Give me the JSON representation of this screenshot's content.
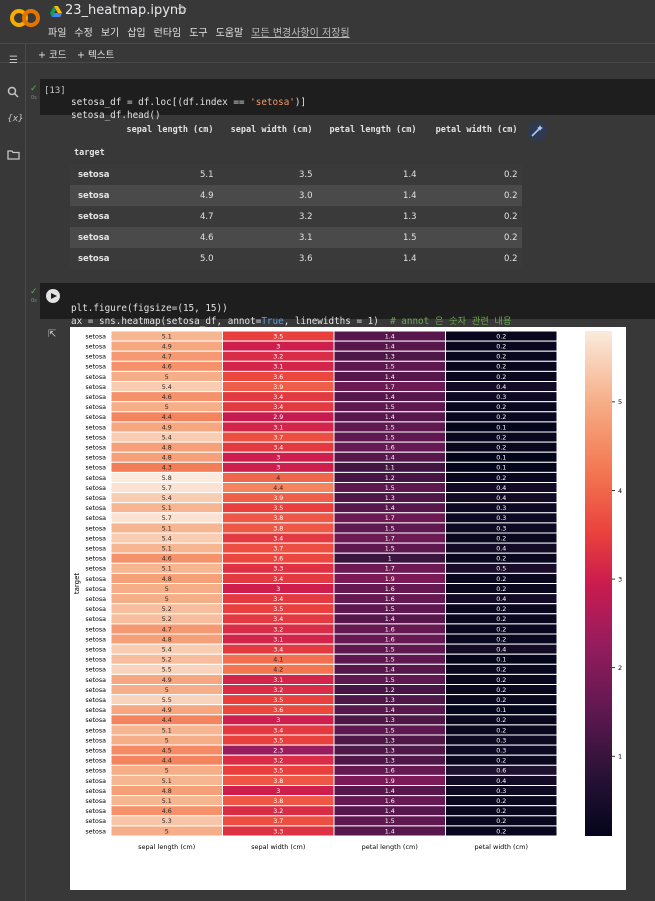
{
  "app": {
    "title": "23_heatmap.ipynb",
    "menu": [
      "파일",
      "수정",
      "보기",
      "삽입",
      "런타임",
      "도구",
      "도움말"
    ],
    "saved_status": "모든 변경사항이 저장됨",
    "toolbar": {
      "add_code": "+ 코드",
      "add_text": "+ 텍스트"
    },
    "icons": {
      "logo": "colab-logo",
      "drive": "drive-icon",
      "star": "star-icon",
      "toc": "toc-icon",
      "search": "search-icon",
      "variables": "variables-icon",
      "files": "folder-icon"
    }
  },
  "cell1": {
    "exec_count": "[13]",
    "line1_pre": "setosa_df = df.loc[(df.index == ",
    "line1_str": "'setosa'",
    "line1_post": ")]",
    "line2": "setosa_df.head()",
    "table": {
      "columns": [
        "sepal length (cm)",
        "sepal width (cm)",
        "petal length (cm)",
        "petal width (cm)"
      ],
      "index_name": "target",
      "rows": [
        {
          "index": "setosa",
          "values": [
            "5.1",
            "3.5",
            "1.4",
            "0.2"
          ]
        },
        {
          "index": "setosa",
          "values": [
            "4.9",
            "3.0",
            "1.4",
            "0.2"
          ]
        },
        {
          "index": "setosa",
          "values": [
            "4.7",
            "3.2",
            "1.3",
            "0.2"
          ]
        },
        {
          "index": "setosa",
          "values": [
            "4.6",
            "3.1",
            "1.5",
            "0.2"
          ]
        },
        {
          "index": "setosa",
          "values": [
            "5.0",
            "3.6",
            "1.4",
            "0.2"
          ]
        }
      ]
    }
  },
  "cell2": {
    "line1_pre": "plt.figure(figsize=(15, 15))",
    "line2_pre": "ax = sns.heatmap(setosa_df, annot=",
    "line2_kw": "True",
    "line2_post": ", linewidths = 1)  ",
    "line2_comment": "# annot 은 숫자 관련 내용"
  },
  "chart_data": {
    "type": "heatmap",
    "ylabel": "target",
    "row_label": "setosa",
    "columns": [
      "sepal length (cm)",
      "sepal width (cm)",
      "petal length (cm)",
      "petal width (cm)"
    ],
    "sepal_length": [
      "5.1",
      "4.9",
      "4.7",
      "4.6",
      "5",
      "5.4",
      "4.6",
      "5",
      "4.4",
      "4.9",
      "5.4",
      "4.8",
      "4.8",
      "4.3",
      "5.8",
      "5.7",
      "5.4",
      "5.1",
      "5.7",
      "5.1",
      "5.4",
      "5.1",
      "4.6",
      "5.1",
      "4.8",
      "5",
      "5",
      "5.2",
      "5.2",
      "4.7",
      "4.8",
      "5.4",
      "5.2",
      "5.5",
      "4.9",
      "5",
      "5.5",
      "4.9",
      "4.4",
      "5.1",
      "5",
      "4.5",
      "4.4",
      "5",
      "5.1",
      "4.8",
      "5.1",
      "4.6",
      "5.3",
      "5"
    ],
    "sepal_width": [
      "3.5",
      "3",
      "3.2",
      "3.1",
      "3.6",
      "3.9",
      "3.4",
      "3.4",
      "2.9",
      "3.1",
      "3.7",
      "3.4",
      "3",
      "3",
      "4",
      "4.4",
      "3.9",
      "3.5",
      "3.8",
      "3.8",
      "3.4",
      "3.7",
      "3.6",
      "3.3",
      "3.4",
      "3",
      "3.4",
      "3.5",
      "3.4",
      "3.2",
      "3.1",
      "3.4",
      "4.1",
      "4.2",
      "3.1",
      "3.2",
      "3.5",
      "3.6",
      "3",
      "3.4",
      "3.5",
      "2.3",
      "3.2",
      "3.5",
      "3.8",
      "3",
      "3.8",
      "3.2",
      "3.7",
      "3.3"
    ],
    "petal_length": [
      "1.4",
      "1.4",
      "1.3",
      "1.5",
      "1.4",
      "1.7",
      "1.4",
      "1.5",
      "1.4",
      "1.5",
      "1.5",
      "1.6",
      "1.4",
      "1.1",
      "1.2",
      "1.5",
      "1.3",
      "1.4",
      "1.7",
      "1.5",
      "1.7",
      "1.5",
      "1",
      "1.7",
      "1.9",
      "1.6",
      "1.6",
      "1.5",
      "1.4",
      "1.6",
      "1.6",
      "1.5",
      "1.5",
      "1.4",
      "1.5",
      "1.2",
      "1.3",
      "1.4",
      "1.3",
      "1.5",
      "1.3",
      "1.3",
      "1.3",
      "1.6",
      "1.9",
      "1.4",
      "1.6",
      "1.4",
      "1.5",
      "1.4"
    ],
    "petal_width": [
      "0.2",
      "0.2",
      "0.2",
      "0.2",
      "0.2",
      "0.4",
      "0.3",
      "0.2",
      "0.2",
      "0.1",
      "0.2",
      "0.2",
      "0.1",
      "0.1",
      "0.2",
      "0.4",
      "0.4",
      "0.3",
      "0.3",
      "0.3",
      "0.2",
      "0.4",
      "0.2",
      "0.5",
      "0.2",
      "0.2",
      "0.4",
      "0.2",
      "0.2",
      "0.2",
      "0.2",
      "0.4",
      "0.1",
      "0.2",
      "0.2",
      "0.2",
      "0.2",
      "0.1",
      "0.2",
      "0.2",
      "0.3",
      "0.3",
      "0.2",
      "0.6",
      "0.4",
      "0.3",
      "0.2",
      "0.2",
      "0.2",
      "0.2"
    ],
    "colorbar": {
      "colormap": "rocket",
      "min": 0.1,
      "max": 5.8,
      "ticks": [
        "1",
        "2",
        "3",
        "4",
        "5"
      ]
    }
  }
}
